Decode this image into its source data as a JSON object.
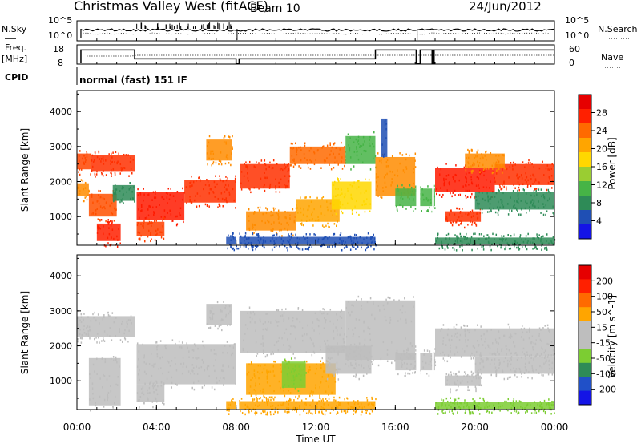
{
  "header": {
    "station": "Christmas Valley West (fitACF)",
    "beam": "Beam 10",
    "date": "24/Jun/2012"
  },
  "strip_labels": {
    "nsky": "N.Sky",
    "nsearch": "N.Search",
    "freq": "Freq.",
    "freq_unit": "[MHz]",
    "nave": "Nave",
    "cpid": "CPID",
    "cpid_value": "normal (fast) 151 IF",
    "log_hi": "10^5",
    "log_lo": "10^0",
    "log_hi_r": "10^5",
    "log_lo_r": "10^0",
    "freq_hi": "18",
    "freq_lo": "8",
    "nave_hi": "60",
    "nave_lo": "0"
  },
  "chart_data": [
    {
      "type": "heatmap",
      "panel": "power",
      "ylabel": "Slant Range [km]",
      "yticks": [
        "1000",
        "2000",
        "3000",
        "4000"
      ],
      "ylim": [
        180,
        4600
      ],
      "xlim": [
        0,
        24
      ],
      "colorbar_label": "Power [dB]",
      "colorbar_ticks": [
        "4",
        "8",
        "12",
        "16",
        "20",
        "24",
        "28"
      ],
      "colorbar_colors": [
        "#1414e6",
        "#1f4fb4",
        "#2e8b57",
        "#46b446",
        "#9acd32",
        "#ffd700",
        "#ffa500",
        "#ff6a00",
        "#ff2000",
        "#e60000"
      ],
      "bands": [
        {
          "t0": 0.0,
          "t1": 0.7,
          "r0": 2350,
          "r1": 2800,
          "c": "#ff4500"
        },
        {
          "t0": 0.7,
          "t1": 2.9,
          "r0": 2300,
          "r1": 2750,
          "c": "#ff3000"
        },
        {
          "t0": 0.0,
          "t1": 0.6,
          "r0": 1600,
          "r1": 1950,
          "c": "#ff8c00"
        },
        {
          "t0": 0.6,
          "t1": 2.0,
          "r0": 1000,
          "r1": 1650,
          "c": "#ff5000"
        },
        {
          "t0": 1.0,
          "t1": 2.2,
          "r0": 300,
          "r1": 800,
          "c": "#ff2000"
        },
        {
          "t0": 1.8,
          "t1": 2.9,
          "r0": 1450,
          "r1": 1900,
          "c": "#2e8b57"
        },
        {
          "t0": 3.0,
          "t1": 5.4,
          "r0": 900,
          "r1": 1700,
          "c": "#ff1a00"
        },
        {
          "t0": 5.4,
          "t1": 8.0,
          "r0": 1400,
          "r1": 2050,
          "c": "#ff3000"
        },
        {
          "t0": 3.0,
          "t1": 4.4,
          "r0": 450,
          "r1": 850,
          "c": "#ff4000"
        },
        {
          "t0": 6.5,
          "t1": 7.8,
          "r0": 2600,
          "r1": 3200,
          "c": "#ff8c00"
        },
        {
          "t0": 8.2,
          "t1": 10.7,
          "r0": 1800,
          "r1": 2500,
          "c": "#ff3000"
        },
        {
          "t0": 10.7,
          "t1": 13.5,
          "r0": 2500,
          "r1": 3000,
          "c": "#ff6a00"
        },
        {
          "t0": 13.5,
          "t1": 15.0,
          "r0": 2500,
          "r1": 3300,
          "c": "#46b446"
        },
        {
          "t0": 8.5,
          "t1": 11.0,
          "r0": 600,
          "r1": 1150,
          "c": "#ff8c00"
        },
        {
          "t0": 11.0,
          "t1": 13.2,
          "r0": 850,
          "r1": 1500,
          "c": "#ffa500"
        },
        {
          "t0": 12.8,
          "t1": 14.8,
          "r0": 1200,
          "r1": 2000,
          "c": "#ffd700"
        },
        {
          "t0": 15.0,
          "t1": 17.0,
          "r0": 1600,
          "r1": 2700,
          "c": "#ff8c00"
        },
        {
          "t0": 15.3,
          "t1": 15.6,
          "r0": 2700,
          "r1": 3800,
          "c": "#1f4fb4"
        },
        {
          "t0": 16.0,
          "t1": 18.0,
          "r0": 1300,
          "r1": 1800,
          "c": "#46b446"
        },
        {
          "t0": 18.0,
          "t1": 21.0,
          "r0": 1700,
          "r1": 2400,
          "c": "#ff1a00"
        },
        {
          "t0": 21.0,
          "t1": 24.0,
          "r0": 1900,
          "r1": 2500,
          "c": "#ff3000"
        },
        {
          "t0": 19.5,
          "t1": 21.5,
          "r0": 2400,
          "r1": 2800,
          "c": "#ff8c00"
        },
        {
          "t0": 18.5,
          "t1": 20.3,
          "r0": 850,
          "r1": 1150,
          "c": "#ff3000"
        },
        {
          "t0": 20.0,
          "t1": 24.0,
          "r0": 1200,
          "r1": 1700,
          "c": "#2e8b57"
        },
        {
          "t0": 7.5,
          "t1": 15.0,
          "r0": 200,
          "r1": 420,
          "c": "#1f4fb4"
        },
        {
          "t0": 18.0,
          "t1": 24.0,
          "r0": 200,
          "r1": 400,
          "c": "#2e8b57"
        }
      ]
    },
    {
      "type": "heatmap",
      "panel": "velocity",
      "ylabel": "Slant Range [km]",
      "yticks": [
        "1000",
        "2000",
        "3000",
        "4000"
      ],
      "ylim": [
        180,
        4600
      ],
      "xlim": [
        0,
        24
      ],
      "xticks": [
        "00:00",
        "04:00",
        "08:00",
        "12:00",
        "16:00",
        "20:00",
        "00:00"
      ],
      "xlabel": "Time UT",
      "colorbar_label": "Velocity [m s^-1]",
      "colorbar_ticks": [
        "200",
        "100",
        "50",
        "15",
        "-15",
        "-50",
        "-100",
        "-200"
      ],
      "colorbar_colors": [
        "#1414e6",
        "#2050c8",
        "#2e8b57",
        "#7ccd32",
        "#bebebe",
        "#bebebe",
        "#ffa500",
        "#ff6a00",
        "#ff2000",
        "#e60000"
      ],
      "bands": [
        {
          "t0": 0.0,
          "t1": 2.9,
          "r0": 2250,
          "r1": 2850,
          "c": "#bdbdbd"
        },
        {
          "t0": 0.6,
          "t1": 2.2,
          "r0": 300,
          "r1": 1650,
          "c": "#bdbdbd"
        },
        {
          "t0": 3.0,
          "t1": 8.0,
          "r0": 900,
          "r1": 2050,
          "c": "#bdbdbd"
        },
        {
          "t0": 3.0,
          "t1": 4.4,
          "r0": 400,
          "r1": 900,
          "c": "#bdbdbd"
        },
        {
          "t0": 6.5,
          "t1": 7.8,
          "r0": 2600,
          "r1": 3200,
          "c": "#bdbdbd"
        },
        {
          "t0": 8.2,
          "t1": 13.5,
          "r0": 1800,
          "r1": 3000,
          "c": "#bdbdbd"
        },
        {
          "t0": 13.5,
          "t1": 17.0,
          "r0": 1600,
          "r1": 3300,
          "c": "#bdbdbd"
        },
        {
          "t0": 8.5,
          "t1": 13.0,
          "r0": 600,
          "r1": 1500,
          "c": "#ffa500"
        },
        {
          "t0": 10.3,
          "t1": 11.5,
          "r0": 800,
          "r1": 1550,
          "c": "#7ccd32"
        },
        {
          "t0": 12.5,
          "t1": 14.8,
          "r0": 1200,
          "r1": 2000,
          "c": "#bdbdbd"
        },
        {
          "t0": 16.0,
          "t1": 18.0,
          "r0": 1300,
          "r1": 1800,
          "c": "#bdbdbd"
        },
        {
          "t0": 18.0,
          "t1": 24.0,
          "r0": 1700,
          "r1": 2500,
          "c": "#bdbdbd"
        },
        {
          "t0": 18.5,
          "t1": 20.3,
          "r0": 850,
          "r1": 1150,
          "c": "#bdbdbd"
        },
        {
          "t0": 20.0,
          "t1": 24.0,
          "r0": 1200,
          "r1": 1700,
          "c": "#bdbdbd"
        },
        {
          "t0": 7.5,
          "t1": 15.0,
          "r0": 200,
          "r1": 420,
          "c": "#ffa500"
        },
        {
          "t0": 18.0,
          "t1": 24.0,
          "r0": 200,
          "r1": 400,
          "c": "#7ccd32"
        }
      ]
    }
  ]
}
